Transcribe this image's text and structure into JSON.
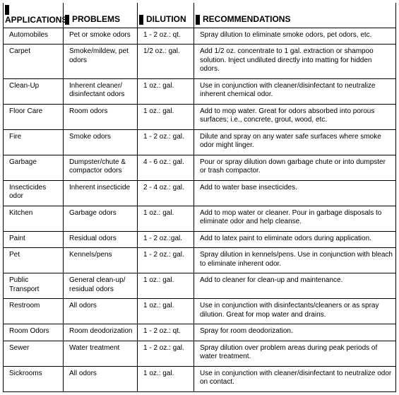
{
  "headers": {
    "applications": "APPLICATIONS",
    "problems": "PROBLEMS",
    "dilution": "DILUTION",
    "recommendations": "RECOMMENDATIONS"
  },
  "rows": [
    {
      "app": "Automobiles",
      "prob": "Pet or smoke odors",
      "dil": "1 - 2 oz.: qt.",
      "rec": "Spray dilution to eliminate smoke odors, pet odors, etc."
    },
    {
      "app": "Carpet",
      "prob": "Smoke/mildew, pet odors",
      "dil": "1/2 oz.: gal.",
      "rec": "Add 1/2 oz. concentrate to 1 gal. extraction or shampoo solution. Inject undiluted directly into matting for hidden odors."
    },
    {
      "app": "Clean-Up",
      "prob": "Inherent cleaner/ disinfectant odors",
      "dil": "1 oz.: gal.",
      "rec": "Use in conjunction with cleaner/disinfectant to neutralize inherent chemical odor."
    },
    {
      "app": "Floor Care",
      "prob": "Room odors",
      "dil": "1 oz.: gal.",
      "rec": "Add to mop water. Great for odors absorbed into porous surfaces; i.e., concrete, grout, wood, etc."
    },
    {
      "app": "Fire",
      "prob": "Smoke odors",
      "dil": "1 - 2 oz.: gal.",
      "rec": "Dilute and spray on any water safe surfaces where smoke odor might linger."
    },
    {
      "app": "Garbage",
      "prob": "Dumpster/chute & compactor odors",
      "dil": "4 - 6 oz.: gal.",
      "rec": "Pour or spray dilution down garbage chute or into dumpster or trash compactor."
    },
    {
      "app": "Insecticides odor",
      "prob": "Inherent insecticide",
      "dil": "2 - 4 oz.: gal.",
      "rec": "Add to water base insecticides."
    },
    {
      "app": "Kitchen",
      "prob": "Garbage odors",
      "dil": "1 oz.: gal.",
      "rec": "Add to mop water or cleaner. Pour in garbage disposals to eliminate odor and help cleanse."
    },
    {
      "app": "Paint",
      "prob": "Residual odors",
      "dil": "1 - 2 oz.:gal.",
      "rec": "Add to latex paint to eliminate odors during application."
    },
    {
      "app": "Pet",
      "prob": "Kennels/pens",
      "dil": "1 - 2 oz.: gal.",
      "rec": "Spray dilution in kennels/pens. Use in conjunction with bleach to eliminate inherent odor."
    },
    {
      "app": "Public Transport",
      "prob": "General clean-up/ residual odors",
      "dil": "1 oz.: gal.",
      "rec": "Add to cleaner for clean-up and maintenance."
    },
    {
      "app": "Restroom",
      "prob": "All odors",
      "dil": "1 oz.: gal.",
      "rec": "Use in conjunction with disinfectants/cleaners or as spray dilution. Great for mop water and drains."
    },
    {
      "app": "Room Odors",
      "prob": "Room deodorization",
      "dil": "1 - 2 oz.: qt.",
      "rec": "Spray for room deodorization."
    },
    {
      "app": "Sewer",
      "prob": "Water treatment",
      "dil": "1 - 2 oz.: gal.",
      "rec": "Spray dilution over problem areas during peak periods of water treatment."
    },
    {
      "app": "Sickrooms",
      "prob": "All odors",
      "dil": "1 oz.: gal.",
      "rec": "Use in conjunction with cleaner/disinfectant to neutralize odor on contact."
    }
  ]
}
